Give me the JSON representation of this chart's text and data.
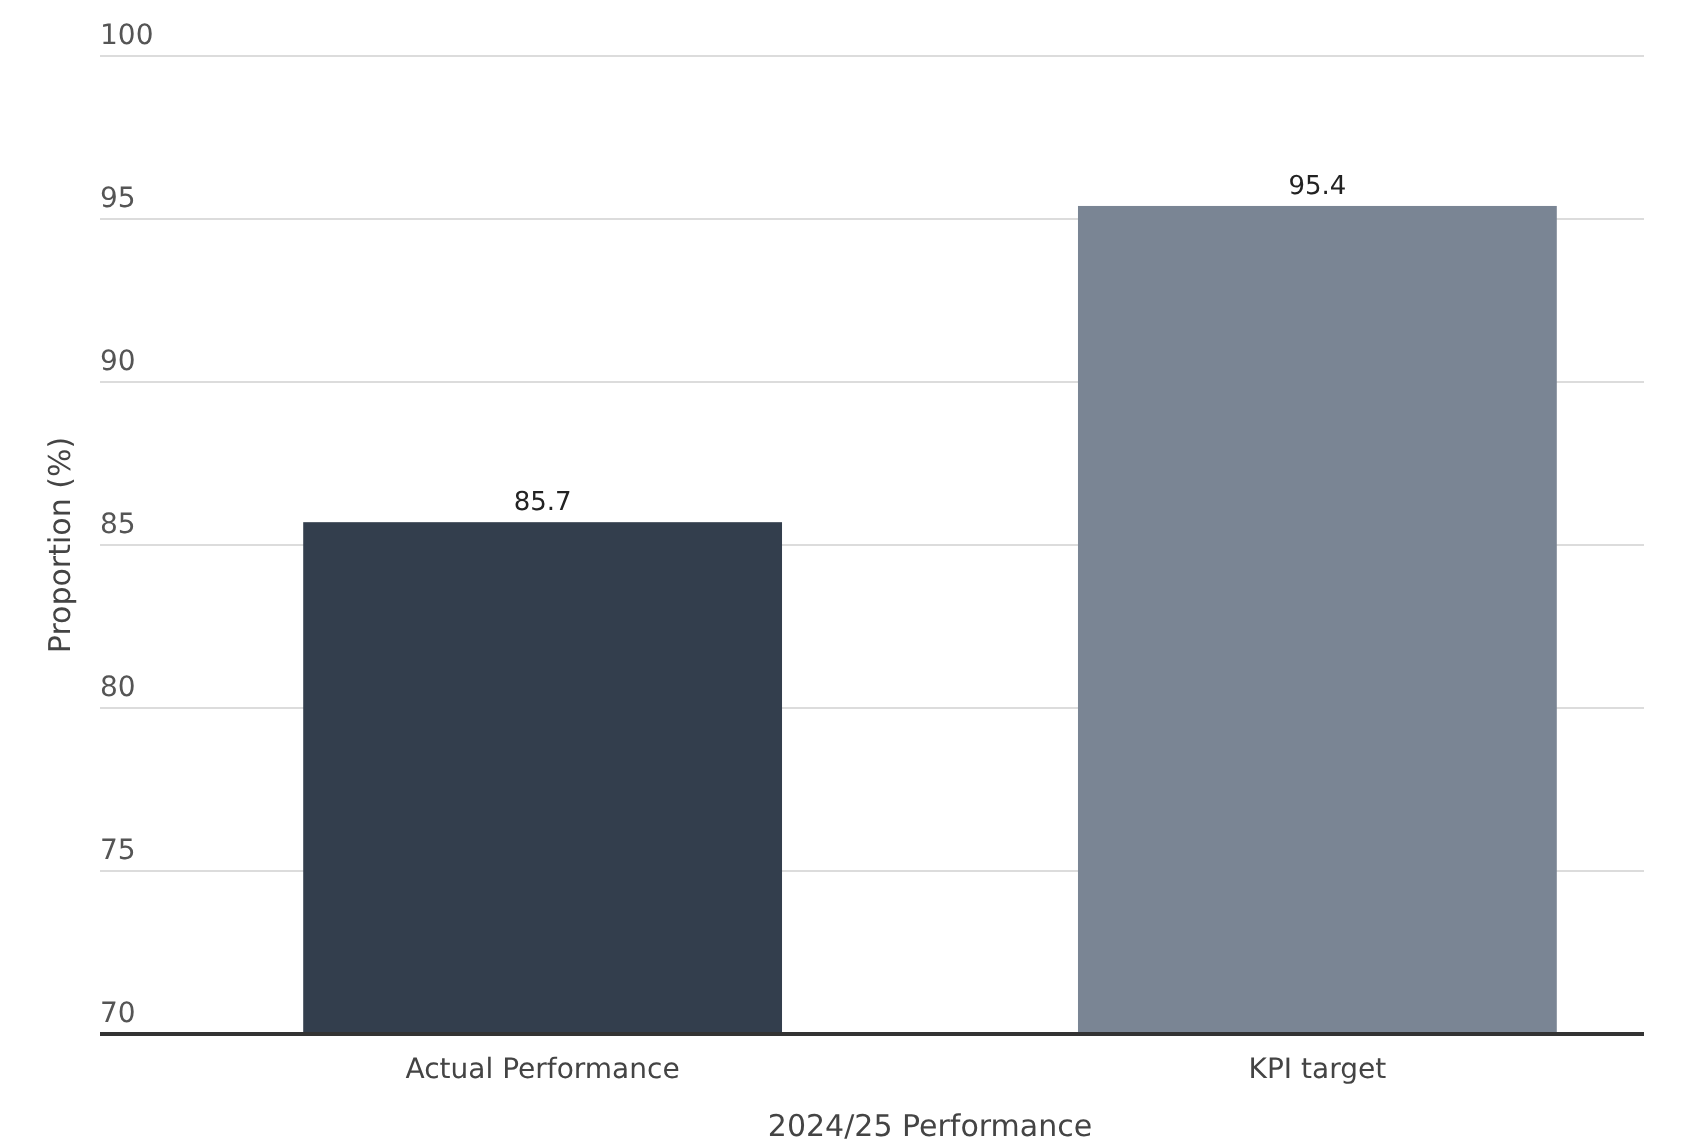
{
  "chart_data": {
    "type": "bar",
    "xlabel": "2024/25 Performance",
    "ylabel": "Proportion (%)",
    "categories": [
      "Actual Performance",
      "KPI target"
    ],
    "values": [
      85.7,
      95.4
    ],
    "colors": [
      "#333e4d",
      "#7a8594"
    ],
    "ylim": [
      70,
      100
    ],
    "yticks": [
      70,
      75,
      80,
      85,
      90,
      95,
      100
    ],
    "grid": "y",
    "data_labels": true
  }
}
